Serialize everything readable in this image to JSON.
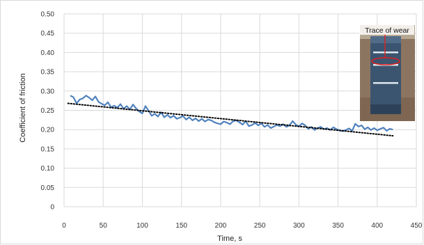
{
  "chart_data": {
    "type": "line",
    "title": "",
    "xlabel": "Time, s",
    "ylabel": "Coefficient of friction",
    "xlim": [
      0,
      450
    ],
    "ylim": [
      0,
      0.5
    ],
    "x_ticks": [
      0,
      50,
      100,
      150,
      200,
      250,
      300,
      350,
      400,
      450
    ],
    "y_ticks": [
      0,
      0.05,
      0.1,
      0.15,
      0.2,
      0.25,
      0.3,
      0.35,
      0.4,
      0.45,
      0.5
    ],
    "x_tick_labels": [
      "0",
      "50",
      "100",
      "150",
      "200",
      "250",
      "300",
      "350",
      "400",
      "450"
    ],
    "y_tick_labels": [
      "0",
      "0.05",
      "0.10",
      "0.15",
      "0.20",
      "0.25",
      "0.30",
      "0.35",
      "0.40",
      "0.45",
      "0.50"
    ],
    "grid": true,
    "legend": "none",
    "series": [
      {
        "color": "#4f81bd",
        "x": [
          8,
          12,
          16,
          20,
          24,
          28,
          32,
          36,
          40,
          44,
          48,
          52,
          56,
          60,
          64,
          68,
          72,
          76,
          80,
          84,
          88,
          92,
          96,
          100,
          104,
          108,
          112,
          116,
          120,
          124,
          128,
          132,
          136,
          140,
          144,
          148,
          152,
          156,
          160,
          164,
          168,
          172,
          176,
          180,
          184,
          188,
          192,
          196,
          200,
          204,
          208,
          212,
          216,
          220,
          224,
          228,
          232,
          236,
          240,
          244,
          248,
          252,
          256,
          260,
          264,
          268,
          272,
          276,
          280,
          284,
          288,
          292,
          296,
          300,
          304,
          308,
          312,
          316,
          320,
          324,
          328,
          332,
          336,
          340,
          344,
          348,
          352,
          356,
          360,
          364,
          368,
          372,
          376,
          380,
          384,
          388,
          392,
          396,
          400,
          404,
          408,
          412,
          416,
          420
        ],
        "y": [
          0.288,
          0.284,
          0.268,
          0.278,
          0.281,
          0.288,
          0.283,
          0.276,
          0.286,
          0.272,
          0.267,
          0.263,
          0.271,
          0.258,
          0.262,
          0.257,
          0.266,
          0.254,
          0.261,
          0.252,
          0.265,
          0.255,
          0.247,
          0.242,
          0.261,
          0.249,
          0.236,
          0.241,
          0.234,
          0.245,
          0.232,
          0.238,
          0.231,
          0.236,
          0.228,
          0.231,
          0.235,
          0.226,
          0.232,
          0.224,
          0.229,
          0.222,
          0.228,
          0.221,
          0.226,
          0.224,
          0.219,
          0.216,
          0.214,
          0.221,
          0.218,
          0.214,
          0.222,
          0.224,
          0.219,
          0.213,
          0.222,
          0.209,
          0.212,
          0.217,
          0.211,
          0.216,
          0.207,
          0.212,
          0.204,
          0.208,
          0.212,
          0.209,
          0.214,
          0.207,
          0.211,
          0.222,
          0.213,
          0.208,
          0.216,
          0.211,
          0.202,
          0.207,
          0.199,
          0.204,
          0.207,
          0.201,
          0.204,
          0.199,
          0.206,
          0.201,
          0.198,
          0.196,
          0.199,
          0.203,
          0.197,
          0.215,
          0.208,
          0.211,
          0.201,
          0.206,
          0.199,
          0.204,
          0.198,
          0.202,
          0.205,
          0.197,
          0.202,
          0.2
        ]
      },
      {
        "type": "trendline",
        "style": "dotted",
        "color": "#000000",
        "x": [
          5,
          420
        ],
        "y": [
          0.268,
          0.184
        ]
      }
    ],
    "annotations": [
      {
        "text": "Trace of wear",
        "kind": "inset-photo-label"
      }
    ]
  },
  "inset": {
    "label": "Trace of wear",
    "icon": "block-photo-icon",
    "marker_color": "#e02020"
  }
}
